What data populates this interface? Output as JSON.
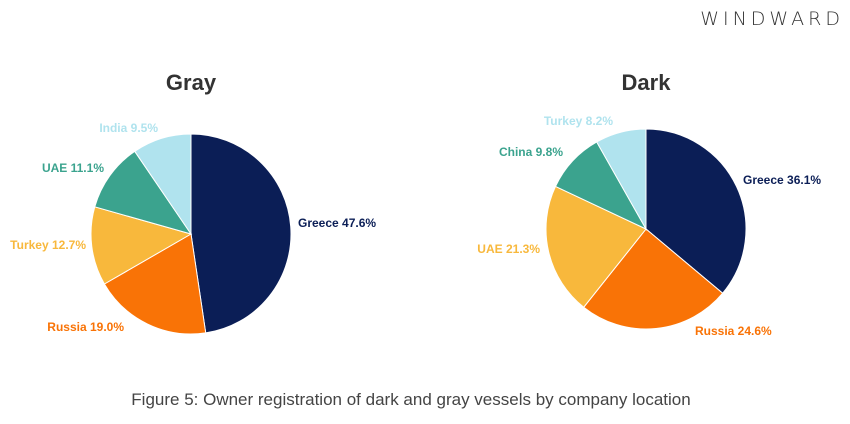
{
  "logo": "WINDWARD",
  "caption": "Figure 5: Owner registration of dark and gray vessels by company location",
  "chart_data": [
    {
      "type": "pie",
      "title": "Gray",
      "categories": [
        "Greece",
        "Russia",
        "Turkey",
        "UAE",
        "India"
      ],
      "values": [
        47.6,
        19.0,
        12.7,
        11.1,
        9.5
      ],
      "labels": [
        "Greece 47.6%",
        "Russia 19.0%",
        "Turkey 12.7%",
        "UAE 11.1%",
        "India 9.5%"
      ],
      "colors": [
        "#0b1e56",
        "#f97306",
        "#f8b83c",
        "#3ba38e",
        "#b0e3ee"
      ]
    },
    {
      "type": "pie",
      "title": "Dark",
      "categories": [
        "Greece",
        "Russia",
        "UAE",
        "China",
        "Turkey"
      ],
      "values": [
        36.1,
        24.6,
        21.3,
        9.8,
        8.2
      ],
      "labels": [
        "Greece 36.1%",
        "Russia 24.6%",
        "UAE 21.3%",
        "China 9.8%",
        "Turkey 8.2%"
      ],
      "colors": [
        "#0b1e56",
        "#f97306",
        "#f8b83c",
        "#3ba38e",
        "#b0e3ee"
      ]
    }
  ]
}
